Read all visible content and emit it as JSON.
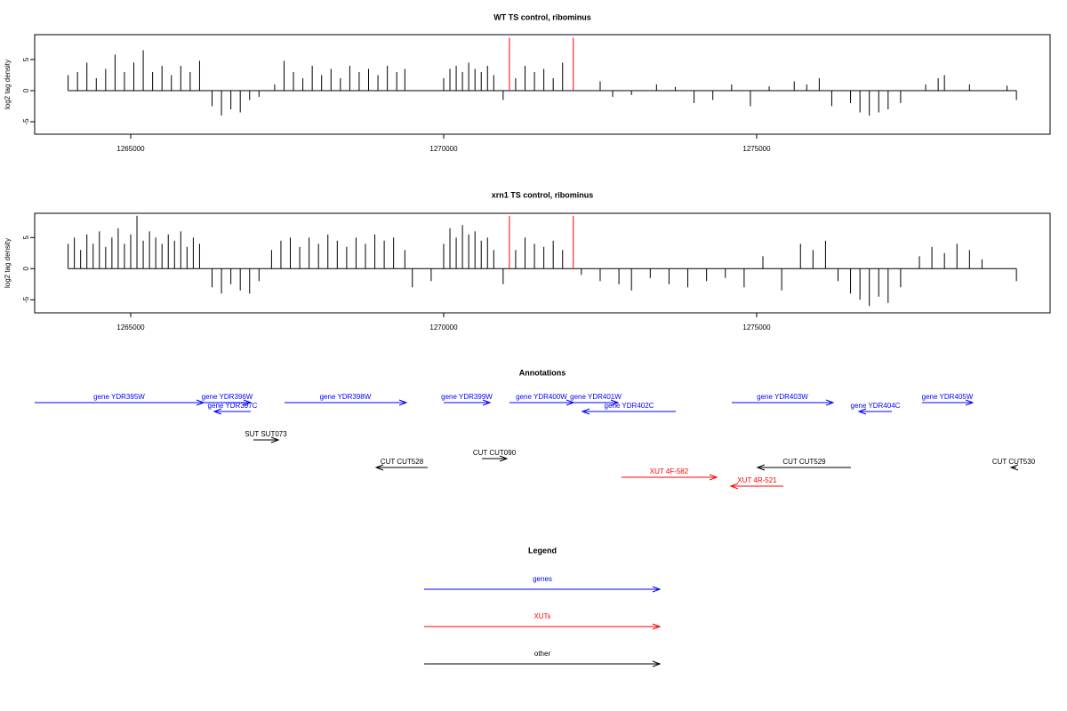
{
  "chart_data": [
    {
      "type": "bar",
      "title": "WT TS control, ribominus",
      "y_label": "log2 tag density",
      "xlim": [
        1263466,
        1279688
      ],
      "xticks": [
        1265000,
        1270000,
        1275000
      ],
      "ylim": [
        -7,
        9
      ],
      "yticks": [
        -5,
        0,
        5
      ],
      "series": [
        {
          "color": "#000000",
          "x": [
            1264000,
            1264150,
            1264300,
            1264450,
            1264600,
            1264750,
            1264900,
            1265050,
            1265200,
            1265350,
            1265500,
            1265650,
            1265800,
            1265950,
            1266100,
            1266300,
            1266450,
            1266600,
            1266750,
            1266900,
            1267050,
            1267300,
            1267450,
            1267600,
            1267750,
            1267900,
            1268050,
            1268200,
            1268350,
            1268500,
            1268650,
            1268800,
            1268950,
            1269100,
            1269250,
            1269380,
            1270000,
            1270100,
            1270200,
            1270300,
            1270400,
            1270500,
            1270600,
            1270700,
            1270800,
            1270950,
            1271150,
            1271300,
            1271450,
            1271600,
            1271750,
            1271900,
            1272500,
            1272700,
            1273000,
            1273400,
            1273700,
            1274000,
            1274300,
            1274600,
            1274900,
            1275200,
            1275600,
            1275800,
            1276000,
            1276200,
            1276500,
            1276650,
            1276800,
            1276950,
            1277100,
            1277300,
            1277700,
            1277900,
            1278000,
            1278400,
            1279000,
            1279150
          ],
          "values": [
            2.5,
            3,
            4.5,
            2,
            3.5,
            5.8,
            3,
            4.5,
            6.5,
            3,
            4,
            2.5,
            4,
            3,
            4.8,
            -2.5,
            -4,
            -3,
            -3.5,
            -1.5,
            -1,
            1,
            4.8,
            3,
            2,
            4,
            2.5,
            3.5,
            2,
            4,
            3,
            3.5,
            2.5,
            4,
            3,
            3.5,
            2,
            3.5,
            4,
            3,
            4.5,
            3.5,
            3,
            4,
            2.5,
            -1.5,
            2,
            4,
            3,
            3.5,
            2,
            4.5,
            1.5,
            -1,
            -0.7,
            1,
            0.6,
            -2,
            -1.5,
            1,
            -2.5,
            0.7,
            1.5,
            1,
            2,
            -2.5,
            -2,
            -3.5,
            -4,
            -3.5,
            -3,
            -2,
            1,
            2,
            2.5,
            1,
            0.8,
            -1.5
          ]
        },
        {
          "color": "#ff0000",
          "x": [
            1271050,
            1272070
          ],
          "values": [
            8.5,
            8.5
          ]
        }
      ]
    },
    {
      "type": "bar",
      "title": "xrn1 TS control, ribominus",
      "y_label": "log2 tag density",
      "xlim": [
        1263466,
        1279688
      ],
      "xticks": [
        1265000,
        1270000,
        1275000
      ],
      "ylim": [
        -7.1,
        8.9
      ],
      "yticks": [
        -5,
        0,
        5
      ],
      "series": [
        {
          "color": "#000000",
          "x": [
            1264000,
            1264100,
            1264200,
            1264300,
            1264400,
            1264500,
            1264600,
            1264700,
            1264800,
            1264900,
            1265000,
            1265100,
            1265200,
            1265300,
            1265400,
            1265500,
            1265600,
            1265700,
            1265800,
            1265900,
            1266000,
            1266100,
            1266300,
            1266450,
            1266600,
            1266750,
            1266900,
            1267050,
            1267250,
            1267400,
            1267550,
            1267700,
            1267850,
            1268000,
            1268150,
            1268300,
            1268450,
            1268600,
            1268750,
            1268900,
            1269050,
            1269200,
            1269380,
            1269500,
            1269800,
            1270000,
            1270100,
            1270200,
            1270300,
            1270400,
            1270500,
            1270600,
            1270700,
            1270800,
            1270950,
            1271150,
            1271300,
            1271450,
            1271600,
            1271750,
            1271900,
            1272200,
            1272500,
            1272800,
            1273000,
            1273300,
            1273600,
            1273900,
            1274200,
            1274500,
            1274800,
            1275100,
            1275400,
            1275700,
            1275900,
            1276100,
            1276300,
            1276500,
            1276650,
            1276800,
            1276950,
            1277100,
            1277300,
            1277600,
            1277800,
            1278000,
            1278200,
            1278400,
            1278600,
            1279150
          ],
          "values": [
            4,
            5,
            3,
            5.5,
            4,
            6,
            3.5,
            5,
            6.5,
            4,
            5.5,
            8.5,
            4.5,
            6,
            5,
            4,
            5.5,
            4.5,
            6,
            3.5,
            5,
            4,
            -3,
            -4,
            -2.5,
            -3.5,
            -4,
            -2,
            3,
            4.5,
            5,
            3.5,
            5,
            4,
            5.5,
            4.5,
            3.5,
            5,
            4,
            5.5,
            4.5,
            5,
            3,
            -3,
            -2,
            4,
            6.5,
            5,
            7,
            5.5,
            6,
            4.5,
            5,
            3,
            -2.5,
            3,
            5,
            4,
            3.5,
            4.5,
            3,
            -1,
            -2,
            -2.5,
            -3.5,
            -1.5,
            -2.5,
            -3,
            -2,
            -1.5,
            -3,
            2,
            -3.5,
            4,
            3,
            4.5,
            -2,
            -4,
            -5,
            -6,
            -4.5,
            -5.5,
            -3,
            2,
            3.5,
            2.5,
            4,
            3,
            1.5,
            -2
          ]
        },
        {
          "color": "#ff0000",
          "x": [
            1271050,
            1272070
          ],
          "values": [
            8.5,
            8.5
          ]
        }
      ]
    }
  ],
  "annotations": {
    "title": "Annotations",
    "features": [
      {
        "label": "gene YDR395W",
        "start": 1263466,
        "end": 1266165,
        "color": "#0000ff"
      },
      {
        "label": "gene YDR396W",
        "start": 1266165,
        "end": 1266918,
        "color": "#0000ff"
      },
      {
        "label": "gene YDR397C",
        "start": 1266918,
        "end": 1266335,
        "color": "#0000ff"
      },
      {
        "label": "gene YDR398W",
        "start": 1267457,
        "end": 1269403,
        "color": "#0000ff"
      },
      {
        "label": "gene YDR399W",
        "start": 1270000,
        "end": 1270739,
        "color": "#0000ff"
      },
      {
        "label": "gene YDR400W",
        "start": 1271051,
        "end": 1272074,
        "color": "#0000ff"
      },
      {
        "label": "gene YDR401W",
        "start": 1272074,
        "end": 1272784,
        "color": "#0000ff"
      },
      {
        "label": "gene YDR402C",
        "start": 1273708,
        "end": 1272216,
        "color": "#0000ff"
      },
      {
        "label": "gene YDR403W",
        "start": 1274602,
        "end": 1276222,
        "color": "#0000ff"
      },
      {
        "label": "gene YDR404C",
        "start": 1277159,
        "end": 1276634,
        "color": "#0000ff"
      },
      {
        "label": "gene YDR405W",
        "start": 1277642,
        "end": 1278452,
        "color": "#0000ff"
      },
      {
        "label": "SUT SUT073",
        "start": 1266960,
        "end": 1267358,
        "color": "#000000"
      },
      {
        "label": "CUT CUT528",
        "start": 1269744,
        "end": 1268921,
        "color": "#000000"
      },
      {
        "label": "CUT CUT090",
        "start": 1270611,
        "end": 1271009,
        "color": "#000000"
      },
      {
        "label": "XUT 4F-582",
        "start": 1272841,
        "end": 1274361,
        "color": "#ff0000"
      },
      {
        "label": "XUT 4R-521",
        "start": 1275426,
        "end": 1274588,
        "color": "#ff0000"
      },
      {
        "label": "CUT CUT529",
        "start": 1276506,
        "end": 1275014,
        "color": "#000000"
      },
      {
        "label": "CUT CUT530",
        "start": 1279148,
        "end": 1279063,
        "color": "#000000"
      }
    ]
  },
  "legend": {
    "title": "Legend",
    "items": [
      {
        "label": "genes",
        "color": "#0000ff"
      },
      {
        "label": "XUTs",
        "color": "#ff0000"
      },
      {
        "label": "other",
        "color": "#000000"
      }
    ]
  }
}
